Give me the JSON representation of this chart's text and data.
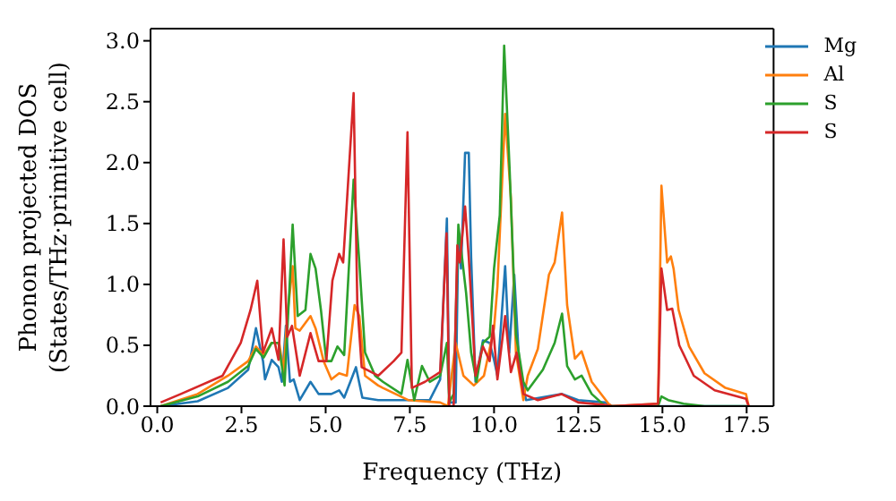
{
  "chart_data": {
    "type": "line",
    "xlabel": "Frequency (THz)",
    "ylabel": "Phonon projected DOS\n(States/THz·primitive cell)",
    "xlim": [
      -0.2,
      18.3
    ],
    "ylim": [
      0,
      3.1
    ],
    "xticks": [
      {
        "value": 0,
        "label": "0.0"
      },
      {
        "value": 2.5,
        "label": "2.5"
      },
      {
        "value": 5,
        "label": "5.0"
      },
      {
        "value": 7.5,
        "label": "7.5"
      },
      {
        "value": 10,
        "label": "10.0"
      },
      {
        "value": 12.5,
        "label": "12.5"
      },
      {
        "value": 15,
        "label": "15.0"
      },
      {
        "value": 17.5,
        "label": "17.5"
      }
    ],
    "yticks": [
      {
        "value": 0,
        "label": "0.0"
      },
      {
        "value": 0.5,
        "label": "0.5"
      },
      {
        "value": 1,
        "label": "1.0"
      },
      {
        "value": 1.5,
        "label": "1.5"
      },
      {
        "value": 2,
        "label": "2.0"
      },
      {
        "value": 2.5,
        "label": "2.5"
      },
      {
        "value": 3,
        "label": "3.0"
      }
    ],
    "legend": "top right",
    "grid": false,
    "marker": "none",
    "line_style": "solid",
    "series": [
      {
        "name": "Mg",
        "color": "#1f77b4",
        "x": [
          0.1,
          1.2,
          2.1,
          2.7,
          2.93,
          3.14,
          3.2,
          3.4,
          3.6,
          3.7,
          3.82,
          3.94,
          4.05,
          4.23,
          4.55,
          4.79,
          5.17,
          5.4,
          5.55,
          5.9,
          6.09,
          6.56,
          8.09,
          8.4,
          8.6,
          8.67,
          8.86,
          8.94,
          9.02,
          9.14,
          9.25,
          9.32,
          9.45,
          9.67,
          9.87,
          10.0,
          10.1,
          10.33,
          10.45,
          10.6,
          10.75,
          10.95,
          12.02,
          12.5,
          13.3,
          13.5,
          17.5
        ],
        "values": [
          0,
          0.04,
          0.15,
          0.3,
          0.64,
          0.37,
          0.22,
          0.38,
          0.32,
          0.2,
          0.66,
          0.2,
          0.22,
          0.05,
          0.2,
          0.1,
          0.1,
          0.13,
          0.07,
          0.32,
          0.07,
          0.05,
          0.05,
          0.22,
          1.54,
          0.03,
          0.03,
          1.42,
          1.13,
          2.08,
          2.08,
          1.22,
          0.2,
          0.54,
          0.52,
          0.38,
          0.25,
          1.15,
          0.44,
          1.08,
          0.33,
          0.05,
          0.1,
          0.05,
          0.03,
          0,
          0
        ]
      },
      {
        "name": "Al",
        "color": "#ff7f0e",
        "x": [
          0.1,
          1.2,
          2.1,
          2.7,
          2.93,
          3.16,
          3.39,
          3.62,
          3.75,
          3.86,
          4.02,
          4.1,
          4.23,
          4.55,
          4.7,
          4.94,
          5.17,
          5.4,
          5.63,
          5.86,
          6.0,
          6.17,
          6.56,
          6.7,
          7.45,
          8.4,
          8.63,
          8.86,
          9.09,
          9.4,
          9.7,
          10.0,
          10.1,
          10.33,
          10.5,
          10.65,
          10.87,
          11.0,
          11.3,
          11.63,
          11.8,
          12.02,
          12.17,
          12.4,
          12.6,
          12.9,
          13.4,
          13.5,
          14.87,
          14.97,
          15.14,
          15.25,
          15.33,
          15.48,
          15.79,
          16.25,
          16.87,
          17.48,
          17.56
        ],
        "values": [
          0,
          0.1,
          0.25,
          0.37,
          0.49,
          0.42,
          0.52,
          0.52,
          0.28,
          0.74,
          1.15,
          0.64,
          0.62,
          0.74,
          0.64,
          0.37,
          0.22,
          0.27,
          0.25,
          0.83,
          0.74,
          0.25,
          0.17,
          0.15,
          0.05,
          0.03,
          0,
          0.52,
          0.25,
          0.17,
          0.25,
          0.64,
          0.98,
          2.4,
          1.71,
          0.44,
          0.05,
          0.25,
          0.47,
          1.08,
          1.18,
          1.59,
          0.83,
          0.39,
          0.45,
          0.2,
          0.02,
          0,
          0.02,
          1.81,
          1.18,
          1.23,
          1.13,
          0.79,
          0.49,
          0.27,
          0.15,
          0.1,
          0
        ]
      },
      {
        "name": "S",
        "color": "#2ca02c",
        "x": [
          0.1,
          1.2,
          2.1,
          2.7,
          2.93,
          3.16,
          3.4,
          3.6,
          3.78,
          4.02,
          4.17,
          4.4,
          4.55,
          4.7,
          4.86,
          5.02,
          5.17,
          5.35,
          5.55,
          5.83,
          6.0,
          6.17,
          6.47,
          6.7,
          7.25,
          7.43,
          7.63,
          7.86,
          8.09,
          8.4,
          8.6,
          8.67,
          8.8,
          8.94,
          9.05,
          9.17,
          9.32,
          9.48,
          9.67,
          9.87,
          10.0,
          10.17,
          10.3,
          10.46,
          10.65,
          10.87,
          11.0,
          11.45,
          11.8,
          12.02,
          12.17,
          12.4,
          12.6,
          12.9,
          13.3,
          14.87,
          14.97,
          15.17,
          15.63,
          16.25,
          17.5
        ],
        "values": [
          0,
          0.08,
          0.2,
          0.33,
          0.47,
          0.4,
          0.52,
          0.52,
          0.17,
          1.49,
          0.74,
          0.79,
          1.25,
          1.13,
          0.79,
          0.37,
          0.37,
          0.49,
          0.42,
          1.86,
          1.18,
          0.44,
          0.25,
          0.2,
          0.1,
          0.38,
          0.05,
          0.33,
          0.2,
          0.25,
          0.52,
          0.03,
          0.1,
          1.49,
          1.22,
          0.93,
          0.44,
          0.2,
          0.52,
          0.57,
          1.13,
          1.57,
          2.96,
          1.96,
          0.59,
          0.2,
          0.13,
          0.3,
          0.52,
          0.76,
          0.33,
          0.22,
          0.25,
          0.1,
          0,
          0,
          0.08,
          0.05,
          0.02,
          0,
          0
        ]
      },
      {
        "name": "S",
        "color": "#d62728",
        "x": [
          0.1,
          0.7,
          1.94,
          2.48,
          2.77,
          2.97,
          3.14,
          3.4,
          3.6,
          3.75,
          3.86,
          4.0,
          4.23,
          4.55,
          4.79,
          5.02,
          5.2,
          5.4,
          5.52,
          5.83,
          5.94,
          6.07,
          6.56,
          7.02,
          7.25,
          7.43,
          7.56,
          7.95,
          8.4,
          8.59,
          8.67,
          8.8,
          8.91,
          8.98,
          9.14,
          9.25,
          9.45,
          9.67,
          9.87,
          9.97,
          10.1,
          10.33,
          10.5,
          10.67,
          10.87,
          11.3,
          12.0,
          12.5,
          13.3,
          13.5,
          14.87,
          14.97,
          15.14,
          15.29,
          15.5,
          15.93,
          16.55,
          17.48,
          17.56
        ],
        "values": [
          0.03,
          0.1,
          0.25,
          0.52,
          0.79,
          1.03,
          0.44,
          0.64,
          0.38,
          1.37,
          0.57,
          0.66,
          0.25,
          0.6,
          0.37,
          0.37,
          1.03,
          1.25,
          1.18,
          2.57,
          0.84,
          0.32,
          0.25,
          0.37,
          0.44,
          2.25,
          0.15,
          0.2,
          0.28,
          1.42,
          0,
          0,
          1.32,
          1.18,
          1.64,
          1.22,
          0.25,
          0.49,
          0.37,
          0.66,
          0.22,
          0.74,
          0.28,
          0.44,
          0.1,
          0.05,
          0.1,
          0.03,
          0.01,
          0,
          0.02,
          1.13,
          0.79,
          0.8,
          0.5,
          0.25,
          0.13,
          0.06,
          0
        ]
      }
    ]
  }
}
